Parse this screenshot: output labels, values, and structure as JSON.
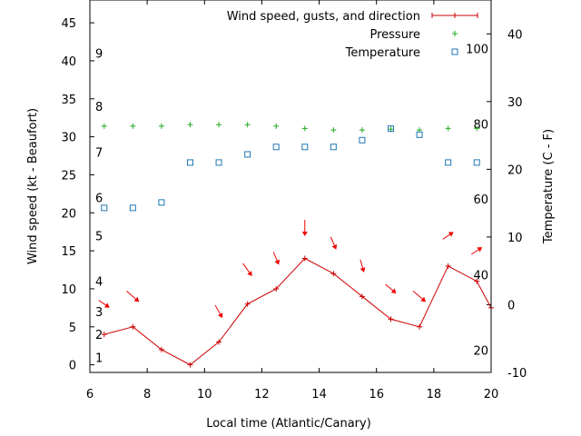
{
  "chart_data": {
    "type": "line",
    "title": "",
    "xlabel": "Local time (Atlantic/Canary)",
    "ylabel": "Wind speed (kt - Beaufort)",
    "y2label": "Temperature (C - F)",
    "xlim": [
      6,
      20
    ],
    "ylim": [
      -1,
      48
    ],
    "y2lim": [
      -10,
      45
    ],
    "x_ticks": [
      "6",
      "8",
      "10",
      "12",
      "14",
      "16",
      "18",
      "20"
    ],
    "y_ticks": [
      "0",
      "5",
      "10",
      "15",
      "20",
      "25",
      "30",
      "35",
      "40",
      "45"
    ],
    "y2_ticks": [
      "-10",
      "0",
      "10",
      "20",
      "30",
      "40"
    ],
    "beaufort_labels": [
      {
        "text": "1",
        "y": 1
      },
      {
        "text": "2",
        "y": 4
      },
      {
        "text": "3",
        "y": 7
      },
      {
        "text": "4",
        "y": 11
      },
      {
        "text": "5",
        "y": 17
      },
      {
        "text": "6",
        "y": 22
      },
      {
        "text": "7",
        "y": 28
      },
      {
        "text": "8",
        "y": 34
      },
      {
        "text": "9",
        "y": 41
      }
    ],
    "fahrenheit_labels": [
      {
        "text": "20",
        "y2": -6.7
      },
      {
        "text": "40",
        "y2": 4.4
      },
      {
        "text": "60",
        "y2": 15.6
      },
      {
        "text": "80",
        "y2": 26.7
      },
      {
        "text": "100",
        "y2": 37.8
      }
    ],
    "legend": {
      "position": "top-right",
      "entries": [
        "Wind speed, gusts, and direction",
        "Pressure",
        "Temperature"
      ]
    },
    "colors": {
      "wind": "#cc0000",
      "arrow": "#ee0000",
      "pressure": "#22aa22",
      "temperature": "#1f77b4"
    },
    "series": [
      {
        "name": "Wind speed, gusts, and direction",
        "axis": "y",
        "x": [
          6.5,
          7.5,
          8.5,
          9.5,
          10.5,
          11.5,
          12.5,
          13.5,
          14.5,
          15.5,
          16.5,
          17.5,
          18.5,
          19.5,
          20
        ],
        "values": [
          4,
          5,
          2,
          0,
          3,
          8,
          10,
          14,
          12,
          9,
          6,
          5,
          13,
          11,
          7.5
        ]
      },
      {
        "name": "Pressure",
        "axis": "y",
        "x": [
          6.5,
          7.5,
          8.5,
          9.5,
          10.5,
          11.5,
          12.5,
          13.5,
          14.5,
          15.5,
          16.5,
          17.5,
          18.5,
          19.5
        ],
        "values": [
          31.4,
          31.4,
          31.4,
          31.6,
          31.6,
          31.6,
          31.4,
          31.1,
          30.9,
          30.9,
          31.0,
          30.9,
          31.1,
          31.1
        ]
      },
      {
        "name": "Temperature",
        "axis": "y2",
        "x": [
          6.5,
          7.5,
          8.5,
          9.5,
          10.5,
          11.5,
          12.5,
          13.5,
          14.5,
          15.5,
          16.5,
          17.5,
          18.5,
          19.5
        ],
        "values": [
          14.3,
          14.3,
          15.1,
          21.0,
          21.0,
          22.2,
          23.3,
          23.3,
          23.3,
          24.3,
          26.0,
          25.1,
          21.0,
          21.0
        ]
      }
    ],
    "wind_direction": {
      "x": [
        6.5,
        7.5,
        10.5,
        11.5,
        12.5,
        13.5,
        14.5,
        15.5,
        16.5,
        17.5,
        18.5,
        19.5
      ],
      "y": [
        8,
        9,
        7,
        12.5,
        14,
        18,
        16,
        13,
        10,
        9,
        17,
        15
      ],
      "dx": [
        6,
        7,
        4,
        5,
        3,
        0,
        3,
        2,
        6,
        7,
        6,
        6
      ],
      "dy": [
        4,
        6,
        7,
        7,
        7,
        9,
        7,
        7,
        5,
        6,
        -4,
        -4
      ]
    }
  }
}
